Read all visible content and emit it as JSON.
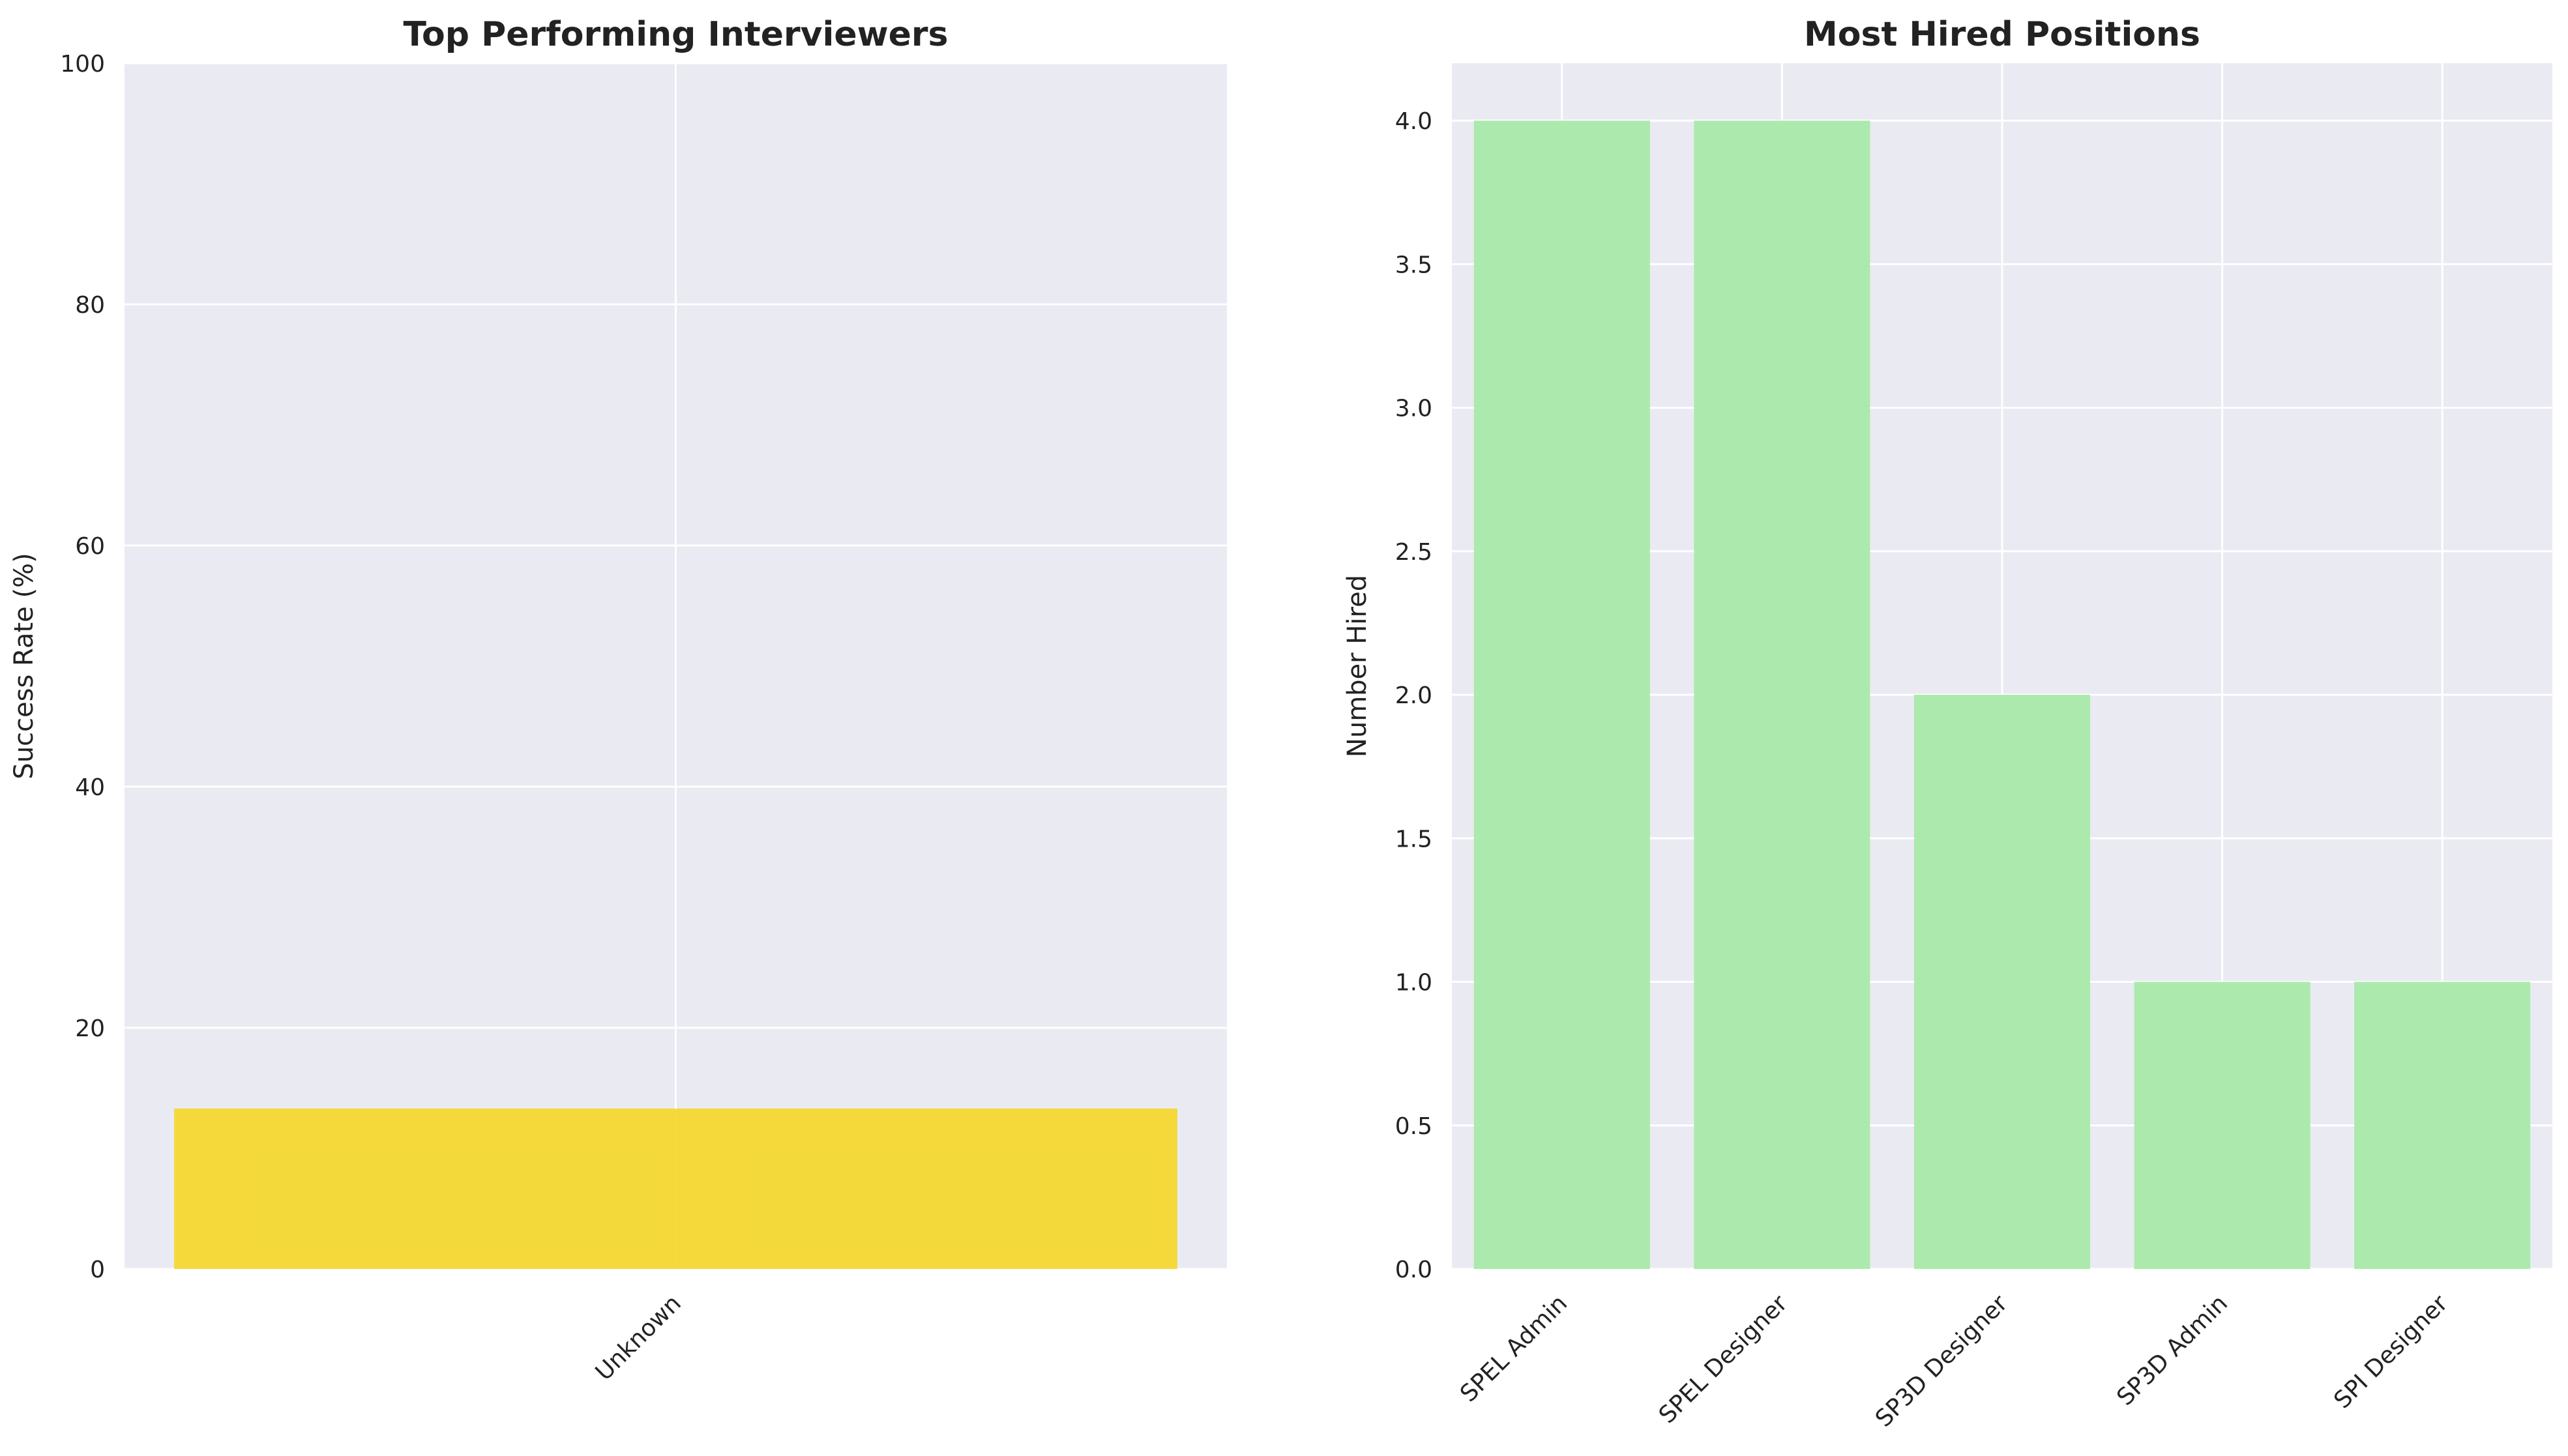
{
  "chart_data": [
    {
      "type": "bar",
      "title": "Top Performing Interviewers",
      "xlabel": "",
      "ylabel": "Success Rate (%)",
      "categories": [
        "Unknown"
      ],
      "values": [
        13.3
      ],
      "ylim": [
        0,
        100
      ],
      "yticks": [
        "0",
        "20",
        "40",
        "60",
        "80",
        "100"
      ],
      "bar_color": "#f5d830",
      "grid": true,
      "background": "#eaeaf2"
    },
    {
      "type": "bar",
      "title": "Most Hired Positions",
      "xlabel": "",
      "ylabel": "Number Hired",
      "categories": [
        "SPEL Admin",
        "SPEL Designer",
        "SP3D Designer",
        "SP3D Admin",
        "SPI Designer"
      ],
      "values": [
        4,
        4,
        2,
        1,
        1
      ],
      "ylim": [
        0,
        4.2
      ],
      "yticks": [
        "0.0",
        "0.5",
        "1.0",
        "1.5",
        "2.0",
        "2.5",
        "3.0",
        "3.5",
        "4.0"
      ],
      "bar_color": "#a8eaa8",
      "grid": true,
      "background": "#eaeaf2"
    }
  ]
}
